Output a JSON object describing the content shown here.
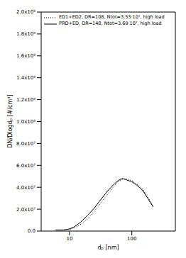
{
  "chart_data": {
    "type": "line",
    "xlabel": "dₚ [nm]",
    "ylabel": "DN/Dlogdₚ [#/cm³]",
    "log": "x",
    "grid": false,
    "legend": "upper left",
    "xlim": [
      3.5,
      500
    ],
    "xticks": [
      10,
      100
    ],
    "ylim": [
      0,
      200000000
    ],
    "yticks": [
      {
        "value": 0,
        "label": "0.0"
      },
      {
        "value": 20000000,
        "label": "2.0x10⁷"
      },
      {
        "value": 40000000,
        "label": "4.0x10⁷"
      },
      {
        "value": 60000000,
        "label": "6.0x10⁷"
      },
      {
        "value": 80000000,
        "label": "8.0x10⁷"
      },
      {
        "value": 100000000,
        "label": "1.0x10⁸"
      },
      {
        "value": 120000000,
        "label": "1.2x10⁸"
      },
      {
        "value": 140000000,
        "label": "1.4x10⁸"
      },
      {
        "value": 160000000,
        "label": "1.6x10⁸"
      },
      {
        "value": 180000000,
        "label": "1.8x10⁸"
      },
      {
        "value": 200000000,
        "label": "2.0x10⁸"
      }
    ],
    "x": [
      6,
      8,
      10,
      12,
      15,
      20,
      25,
      30,
      40,
      50,
      60,
      70,
      80,
      100,
      120,
      150,
      180,
      220
    ],
    "series": [
      {
        "name": "ED1+ED2, DR=108, Ntot=3.53·10⁷, high load",
        "color": "#000000",
        "line_style": "dotted",
        "values": [
          1000000,
          1000000,
          1500000,
          3000000,
          6000000,
          12000000,
          18000000,
          24000000,
          33000000,
          40000000,
          45000000,
          47000000,
          48000000,
          46000000,
          43000000,
          38000000,
          31000000,
          23000000
        ]
      },
      {
        "name": "PRD+ED, DR=148, Ntot=3.69·10⁷, high load",
        "color": "#000000",
        "line_style": "solid",
        "values": [
          1000000,
          1000000,
          2000000,
          4000000,
          8000000,
          15000000,
          21000000,
          27000000,
          36000000,
          42000000,
          46000000,
          48000000,
          47000000,
          45000000,
          42000000,
          37000000,
          30000000,
          22000000
        ]
      }
    ]
  }
}
